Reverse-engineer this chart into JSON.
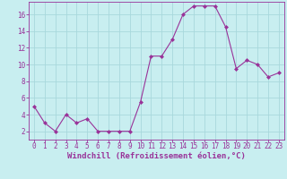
{
  "x": [
    0,
    1,
    2,
    3,
    4,
    5,
    6,
    7,
    8,
    9,
    10,
    11,
    12,
    13,
    14,
    15,
    16,
    17,
    18,
    19,
    20,
    21,
    22,
    23
  ],
  "y": [
    5,
    3,
    2,
    4,
    3,
    3.5,
    2,
    2,
    2,
    2,
    5.5,
    11,
    11,
    13,
    16,
    17,
    17,
    17,
    14.5,
    9.5,
    10.5,
    10,
    8.5,
    9
  ],
  "line_color": "#993399",
  "marker_color": "#993399",
  "bg_color": "#c8eef0",
  "grid_color": "#a8d8dc",
  "xlabel": "Windchill (Refroidissement éolien,°C)",
  "xlim_min": -0.5,
  "xlim_max": 23.5,
  "ylim_min": 1,
  "ylim_max": 17.5,
  "yticks": [
    2,
    4,
    6,
    8,
    10,
    12,
    14,
    16
  ],
  "xticks": [
    0,
    1,
    2,
    3,
    4,
    5,
    6,
    7,
    8,
    9,
    10,
    11,
    12,
    13,
    14,
    15,
    16,
    17,
    18,
    19,
    20,
    21,
    22,
    23
  ],
  "tick_color": "#993399",
  "label_fontsize": 6.5,
  "tick_fontsize": 5.5,
  "line_width": 0.8,
  "marker_size": 2.0
}
